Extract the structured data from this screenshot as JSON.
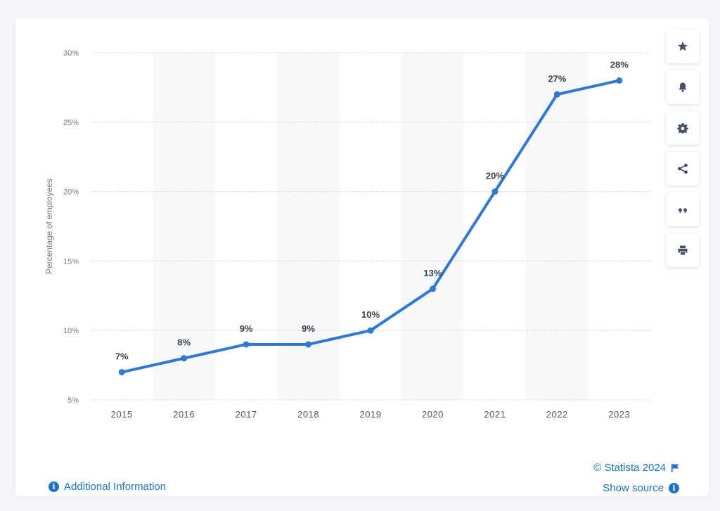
{
  "chart_data": {
    "type": "line",
    "title": "",
    "xlabel": "",
    "ylabel": "Percentage of employees",
    "categories": [
      "2015",
      "2016",
      "2017",
      "2018",
      "2019",
      "2020",
      "2021",
      "2022",
      "2023"
    ],
    "values": [
      7,
      8,
      9,
      9,
      10,
      13,
      20,
      27,
      28
    ],
    "data_labels": [
      "7%",
      "8%",
      "9%",
      "9%",
      "10%",
      "13%",
      "20%",
      "27%",
      "28%"
    ],
    "ylim": [
      5,
      30
    ],
    "yticks": [
      5,
      10,
      15,
      20,
      25,
      30
    ],
    "ytick_labels": [
      "5%",
      "10%",
      "15%",
      "20%",
      "25%",
      "30%"
    ],
    "grid": true,
    "series_color": "#2f78d4",
    "legend": "none"
  },
  "sidebar": {
    "buttons": [
      {
        "name": "star",
        "icon": "star-icon"
      },
      {
        "name": "bell",
        "icon": "bell-icon"
      },
      {
        "name": "settings",
        "icon": "gear-icon"
      },
      {
        "name": "share",
        "icon": "share-icon"
      },
      {
        "name": "cite",
        "icon": "quote-icon"
      },
      {
        "name": "print",
        "icon": "printer-icon"
      }
    ]
  },
  "footer": {
    "additional_info": "Additional Information",
    "copyright": "© Statista 2024",
    "show_source": "Show source",
    "info_glyph": "i"
  },
  "colors": {
    "accent": "#1a73c7",
    "line": "#2f78d4",
    "band": "#f7f8fa",
    "icon": "#455166"
  }
}
